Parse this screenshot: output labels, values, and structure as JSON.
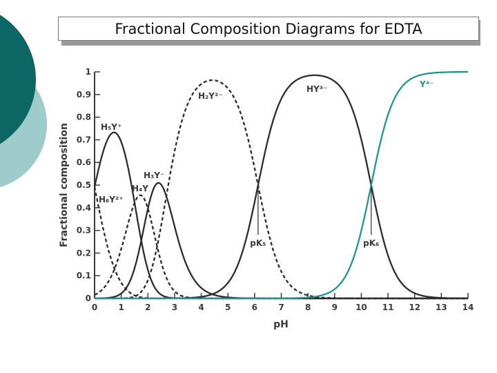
{
  "slide": {
    "title": "Fractional Composition Diagrams for EDTA",
    "colors": {
      "dark_circle": "#0c6663",
      "light_circle": "#9ecccb"
    }
  },
  "chart_data": {
    "type": "line",
    "title": "",
    "xlabel": "pH",
    "ylabel": "Fractional composition",
    "xlim": [
      0,
      14
    ],
    "ylim": [
      0,
      1
    ],
    "x_ticks": [
      "0",
      "1",
      "2",
      "3",
      "4",
      "5",
      "6",
      "7",
      "8",
      "9",
      "10",
      "11",
      "12",
      "13",
      "14"
    ],
    "y_ticks": [
      "0",
      "0.1",
      "0.2",
      "0.3",
      "0.4",
      "0.5",
      "0.6",
      "0.7",
      "0.8",
      "0.9",
      "1"
    ],
    "grid": false,
    "pKa": [
      0.0,
      1.5,
      2.0,
      2.69,
      6.13,
      10.37
    ],
    "series": [
      {
        "name": "H₆Y²⁺",
        "style": "dashed",
        "color": "#2b2b2b",
        "peak": {
          "x": 0,
          "y": 0.5
        }
      },
      {
        "name": "H₅Y⁺",
        "style": "solid",
        "color": "#2b2b2b",
        "peak": {
          "x": 0.75,
          "y": 0.73
        }
      },
      {
        "name": "H₄Y",
        "style": "dashed",
        "color": "#2b2b2b",
        "peak": {
          "x": 1.75,
          "y": 0.45
        }
      },
      {
        "name": "H₃Y⁻",
        "style": "solid",
        "color": "#2b2b2b",
        "peak": {
          "x": 2.35,
          "y": 0.51
        }
      },
      {
        "name": "H₂Y²⁻",
        "style": "dashed",
        "color": "#2b2b2b",
        "peak": {
          "x": 4.4,
          "y": 0.96
        }
      },
      {
        "name": "HY³⁻",
        "style": "solid",
        "color": "#2b2b2b",
        "peak": {
          "x": 8.25,
          "y": 0.99
        }
      },
      {
        "name": "Y⁴⁻",
        "style": "solid",
        "color": "#1a9a8c",
        "peak": {
          "x": 14,
          "y": 1.0
        }
      }
    ],
    "annotations": [
      {
        "text": "pK₅",
        "x": 6.13
      },
      {
        "text": "pK₆",
        "x": 10.37
      }
    ]
  }
}
